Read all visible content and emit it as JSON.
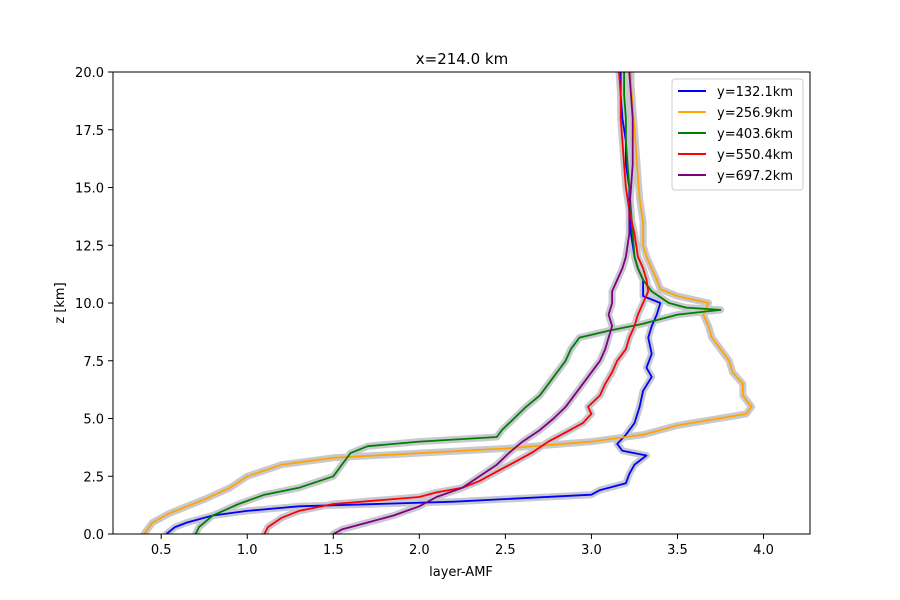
{
  "chart_data": {
    "type": "line",
    "title": "x=214.0 km",
    "xlabel": "layer-AMF",
    "ylabel": "z [km]",
    "xlim": [
      0.22,
      4.27
    ],
    "ylim": [
      0,
      20
    ],
    "x_ticks": [
      "0.5",
      "1.0",
      "1.5",
      "2.0",
      "2.5",
      "3.0",
      "3.5",
      "4.0"
    ],
    "y_ticks": [
      "0.0",
      "2.5",
      "5.0",
      "7.5",
      "10.0",
      "12.5",
      "15.0",
      "17.5",
      "20.0"
    ],
    "grid": false,
    "legend_position": "top-right",
    "uncertainty_band_color": "#c8c8d0",
    "series": [
      {
        "name": "y=132.1km",
        "color": "#0000ff",
        "points": [
          [
            0.53,
            0
          ],
          [
            0.58,
            0.3
          ],
          [
            0.65,
            0.5
          ],
          [
            0.8,
            0.8
          ],
          [
            1.0,
            1.0
          ],
          [
            1.3,
            1.2
          ],
          [
            2.2,
            1.4
          ],
          [
            3.0,
            1.7
          ],
          [
            3.05,
            1.9
          ],
          [
            3.2,
            2.2
          ],
          [
            3.22,
            2.6
          ],
          [
            3.25,
            3.0
          ],
          [
            3.32,
            3.4
          ],
          [
            3.18,
            3.6
          ],
          [
            3.15,
            3.9
          ],
          [
            3.2,
            4.3
          ],
          [
            3.25,
            4.8
          ],
          [
            3.28,
            5.5
          ],
          [
            3.3,
            6.2
          ],
          [
            3.35,
            6.8
          ],
          [
            3.32,
            7.2
          ],
          [
            3.35,
            7.8
          ],
          [
            3.33,
            8.5
          ],
          [
            3.35,
            9.0
          ],
          [
            3.38,
            9.5
          ],
          [
            3.4,
            10.0
          ],
          [
            3.3,
            10.3
          ],
          [
            3.3,
            11.0
          ],
          [
            3.27,
            11.5
          ],
          [
            3.25,
            12.0
          ],
          [
            3.23,
            13.0
          ],
          [
            3.22,
            14.0
          ],
          [
            3.22,
            15.0
          ],
          [
            3.2,
            16.0
          ],
          [
            3.2,
            17.0
          ],
          [
            3.18,
            18.0
          ],
          [
            3.17,
            19.0
          ],
          [
            3.17,
            20.0
          ]
        ]
      },
      {
        "name": "y=256.9km",
        "color": "#ffa500",
        "points": [
          [
            0.4,
            0
          ],
          [
            0.45,
            0.5
          ],
          [
            0.55,
            0.9
          ],
          [
            0.75,
            1.5
          ],
          [
            0.9,
            2.0
          ],
          [
            1.0,
            2.5
          ],
          [
            1.2,
            3.0
          ],
          [
            1.5,
            3.3
          ],
          [
            2.0,
            3.5
          ],
          [
            2.5,
            3.7
          ],
          [
            3.0,
            4.0
          ],
          [
            3.3,
            4.3
          ],
          [
            3.5,
            4.7
          ],
          [
            3.9,
            5.2
          ],
          [
            3.93,
            5.5
          ],
          [
            3.88,
            6.0
          ],
          [
            3.88,
            6.5
          ],
          [
            3.82,
            7.0
          ],
          [
            3.8,
            7.5
          ],
          [
            3.75,
            8.0
          ],
          [
            3.7,
            8.5
          ],
          [
            3.68,
            9.0
          ],
          [
            3.65,
            9.5
          ],
          [
            3.68,
            10.0
          ],
          [
            3.5,
            10.3
          ],
          [
            3.4,
            10.6
          ],
          [
            3.38,
            11.0
          ],
          [
            3.35,
            11.5
          ],
          [
            3.32,
            12.0
          ],
          [
            3.3,
            12.5
          ],
          [
            3.3,
            13.5
          ],
          [
            3.28,
            14.5
          ],
          [
            3.27,
            15.5
          ],
          [
            3.26,
            16.5
          ],
          [
            3.25,
            17.5
          ],
          [
            3.24,
            18.5
          ],
          [
            3.23,
            19.5
          ],
          [
            3.23,
            20.0
          ]
        ]
      },
      {
        "name": "y=403.6km",
        "color": "#008000",
        "points": [
          [
            0.7,
            0
          ],
          [
            0.72,
            0.3
          ],
          [
            0.8,
            0.8
          ],
          [
            0.95,
            1.3
          ],
          [
            1.1,
            1.7
          ],
          [
            1.3,
            2.0
          ],
          [
            1.5,
            2.5
          ],
          [
            1.55,
            3.0
          ],
          [
            1.6,
            3.5
          ],
          [
            1.7,
            3.8
          ],
          [
            2.0,
            4.0
          ],
          [
            2.45,
            4.2
          ],
          [
            2.48,
            4.5
          ],
          [
            2.55,
            5.0
          ],
          [
            2.62,
            5.5
          ],
          [
            2.7,
            6.0
          ],
          [
            2.75,
            6.5
          ],
          [
            2.8,
            7.0
          ],
          [
            2.85,
            7.5
          ],
          [
            2.88,
            8.0
          ],
          [
            2.93,
            8.5
          ],
          [
            3.1,
            8.8
          ],
          [
            3.3,
            9.1
          ],
          [
            3.5,
            9.5
          ],
          [
            3.75,
            9.7
          ],
          [
            3.55,
            9.8
          ],
          [
            3.45,
            10.0
          ],
          [
            3.35,
            10.5
          ],
          [
            3.3,
            11.0
          ],
          [
            3.27,
            11.5
          ],
          [
            3.25,
            12.0
          ],
          [
            3.24,
            13.0
          ],
          [
            3.23,
            14.0
          ],
          [
            3.22,
            15.0
          ],
          [
            3.21,
            16.0
          ],
          [
            3.2,
            17.0
          ],
          [
            3.2,
            18.0
          ],
          [
            3.19,
            19.0
          ],
          [
            3.19,
            20.0
          ]
        ]
      },
      {
        "name": "y=550.4km",
        "color": "#ff0000",
        "points": [
          [
            1.1,
            0
          ],
          [
            1.12,
            0.3
          ],
          [
            1.2,
            0.7
          ],
          [
            1.3,
            1.0
          ],
          [
            1.5,
            1.3
          ],
          [
            2.0,
            1.6
          ],
          [
            2.1,
            1.8
          ],
          [
            2.25,
            2.0
          ],
          [
            2.35,
            2.3
          ],
          [
            2.45,
            2.7
          ],
          [
            2.55,
            3.1
          ],
          [
            2.65,
            3.5
          ],
          [
            2.75,
            4.0
          ],
          [
            2.85,
            4.4
          ],
          [
            2.95,
            4.8
          ],
          [
            3.0,
            5.2
          ],
          [
            2.98,
            5.5
          ],
          [
            3.05,
            6.0
          ],
          [
            3.08,
            6.5
          ],
          [
            3.12,
            7.0
          ],
          [
            3.15,
            7.5
          ],
          [
            3.2,
            8.0
          ],
          [
            3.22,
            8.5
          ],
          [
            3.25,
            9.0
          ],
          [
            3.27,
            9.5
          ],
          [
            3.3,
            10.0
          ],
          [
            3.33,
            10.5
          ],
          [
            3.32,
            11.0
          ],
          [
            3.3,
            11.5
          ],
          [
            3.27,
            12.0
          ],
          [
            3.25,
            13.0
          ],
          [
            3.22,
            14.0
          ],
          [
            3.2,
            15.0
          ],
          [
            3.19,
            16.0
          ],
          [
            3.18,
            17.0
          ],
          [
            3.17,
            18.0
          ],
          [
            3.17,
            19.0
          ],
          [
            3.16,
            20.0
          ]
        ]
      },
      {
        "name": "y=697.2km",
        "color": "#800080",
        "points": [
          [
            1.5,
            0
          ],
          [
            1.55,
            0.2
          ],
          [
            1.7,
            0.5
          ],
          [
            1.85,
            0.8
          ],
          [
            2.0,
            1.2
          ],
          [
            2.1,
            1.6
          ],
          [
            2.25,
            2.0
          ],
          [
            2.35,
            2.5
          ],
          [
            2.45,
            3.0
          ],
          [
            2.52,
            3.5
          ],
          [
            2.6,
            4.0
          ],
          [
            2.7,
            4.5
          ],
          [
            2.78,
            5.0
          ],
          [
            2.85,
            5.5
          ],
          [
            2.9,
            6.0
          ],
          [
            2.95,
            6.5
          ],
          [
            3.0,
            7.0
          ],
          [
            3.05,
            7.5
          ],
          [
            3.08,
            8.0
          ],
          [
            3.1,
            8.5
          ],
          [
            3.12,
            9.0
          ],
          [
            3.1,
            9.5
          ],
          [
            3.12,
            10.0
          ],
          [
            3.12,
            10.5
          ],
          [
            3.15,
            11.0
          ],
          [
            3.18,
            11.5
          ],
          [
            3.2,
            12.0
          ],
          [
            3.22,
            13.0
          ],
          [
            3.22,
            14.0
          ],
          [
            3.23,
            15.0
          ],
          [
            3.24,
            16.0
          ],
          [
            3.24,
            17.0
          ],
          [
            3.24,
            18.0
          ],
          [
            3.23,
            19.0
          ],
          [
            3.22,
            20.0
          ]
        ]
      }
    ]
  }
}
